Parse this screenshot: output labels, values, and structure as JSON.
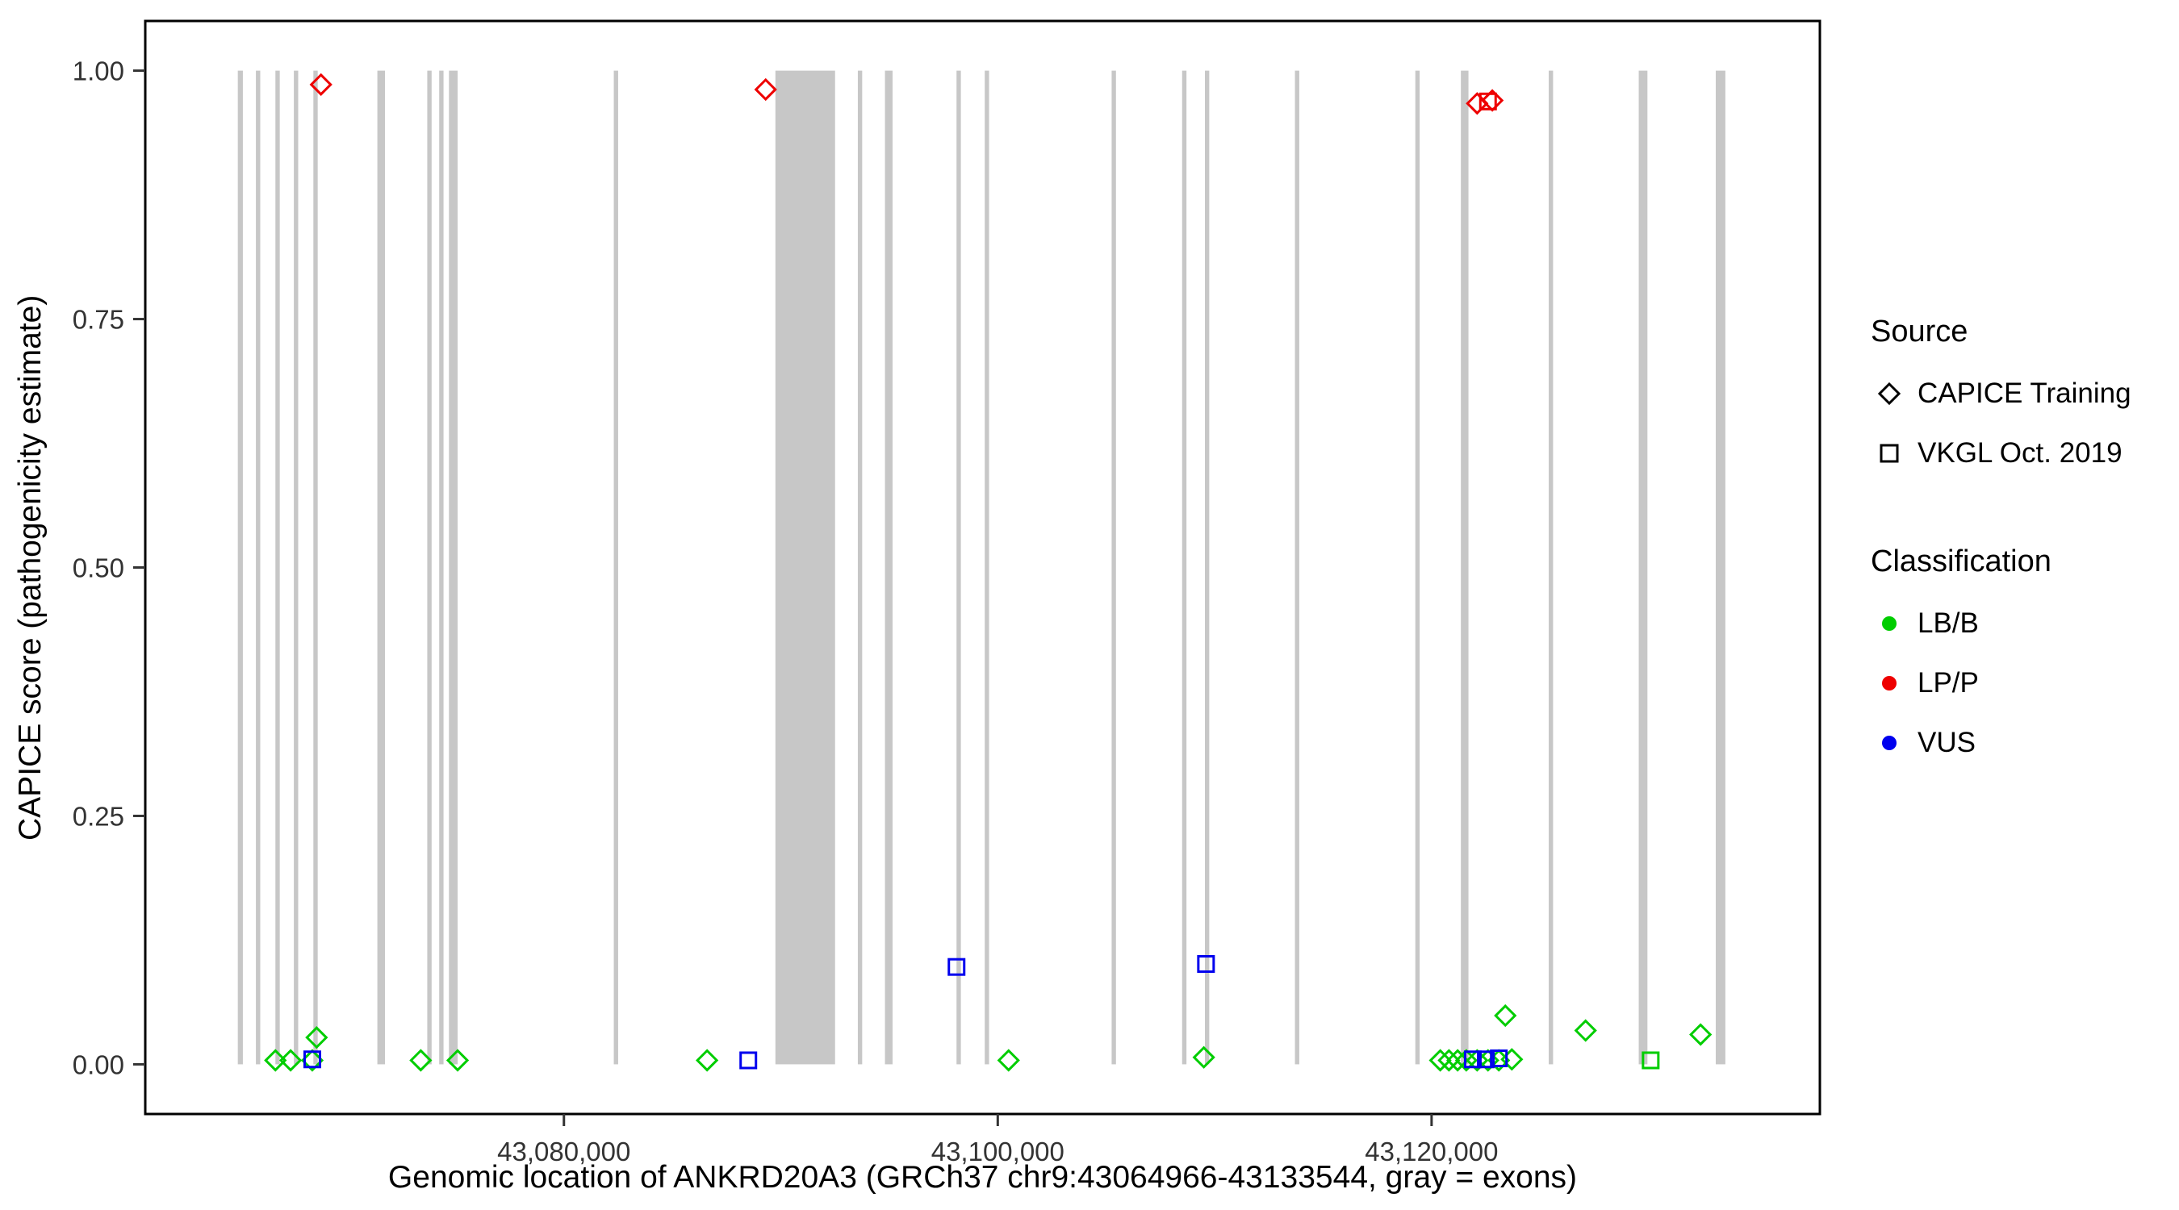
{
  "chart_data": {
    "type": "scatter",
    "title": "",
    "xlabel": "Genomic location of ANKRD20A3 (GRCh37 chr9:43064966-43133544, gray = exons)",
    "ylabel": "CAPICE score (pathogenicity estimate)",
    "xlim": [
      43060700,
      43137900
    ],
    "ylim": [
      -0.05,
      1.05
    ],
    "grid": false,
    "legend_position": "right",
    "x_ticks": [
      {
        "value": 43080000,
        "label": "43,080,000"
      },
      {
        "value": 43100000,
        "label": "43,100,000"
      },
      {
        "value": 43120000,
        "label": "43,120,000"
      }
    ],
    "y_ticks": [
      {
        "value": 0.0,
        "label": "0.00"
      },
      {
        "value": 0.25,
        "label": "0.25"
      },
      {
        "value": 0.5,
        "label": "0.50"
      },
      {
        "value": 0.75,
        "label": "0.75"
      },
      {
        "value": 1.0,
        "label": "1.00"
      }
    ],
    "exons": [
      [
        43064966,
        43065200
      ],
      [
        43065800,
        43066000
      ],
      [
        43066700,
        43066900
      ],
      [
        43067550,
        43067750
      ],
      [
        43068450,
        43068650
      ],
      [
        43071400,
        43071750
      ],
      [
        43073700,
        43073900
      ],
      [
        43074250,
        43074450
      ],
      [
        43074700,
        43075100
      ],
      [
        43082300,
        43082500
      ],
      [
        43089750,
        43092500
      ],
      [
        43093550,
        43093750
      ],
      [
        43094800,
        43095150
      ],
      [
        43098100,
        43098300
      ],
      [
        43099400,
        43099600
      ],
      [
        43105250,
        43105450
      ],
      [
        43108500,
        43108700
      ],
      [
        43109550,
        43109750
      ],
      [
        43113700,
        43113900
      ],
      [
        43119250,
        43119450
      ],
      [
        43121350,
        43121700
      ],
      [
        43125400,
        43125600
      ],
      [
        43129550,
        43129950
      ],
      [
        43133100,
        43133544
      ]
    ],
    "series": [
      {
        "name": "CAPICE Training - LB/B",
        "source": "CAPICE Training",
        "classification": "LB/B",
        "shape": "diamond",
        "color": "#00CD00",
        "points": [
          [
            43066700,
            0.004
          ],
          [
            43067400,
            0.004
          ],
          [
            43068400,
            0.004
          ],
          [
            43068600,
            0.027
          ],
          [
            43073400,
            0.004
          ],
          [
            43075100,
            0.004
          ],
          [
            43086600,
            0.004
          ],
          [
            43100500,
            0.004
          ],
          [
            43109500,
            0.007
          ],
          [
            43120400,
            0.004
          ],
          [
            43120800,
            0.004
          ],
          [
            43121200,
            0.004
          ],
          [
            43121600,
            0.004
          ],
          [
            43122100,
            0.004
          ],
          [
            43122600,
            0.004
          ],
          [
            43123100,
            0.004
          ],
          [
            43123700,
            0.005
          ],
          [
            43123400,
            0.049
          ],
          [
            43127100,
            0.034
          ],
          [
            43132400,
            0.03
          ]
        ]
      },
      {
        "name": "VKGL Oct. 2019 - LB/B",
        "source": "VKGL Oct. 2019",
        "classification": "LB/B",
        "shape": "square",
        "color": "#00CD00",
        "points": [
          [
            43130100,
            0.004
          ]
        ]
      },
      {
        "name": "VKGL Oct. 2019 - VUS",
        "source": "VKGL Oct. 2019",
        "classification": "VUS",
        "shape": "square",
        "color": "#0000EE",
        "points": [
          [
            43068400,
            0.005
          ],
          [
            43088500,
            0.004
          ],
          [
            43098100,
            0.098
          ],
          [
            43109600,
            0.101
          ],
          [
            43121900,
            0.005
          ],
          [
            43122500,
            0.005
          ],
          [
            43123100,
            0.006
          ]
        ]
      },
      {
        "name": "VKGL Oct. 2019 - LP/P",
        "source": "VKGL Oct. 2019",
        "classification": "LP/P",
        "shape": "square",
        "color": "#EE0000",
        "points": [
          [
            43122600,
            0.969
          ]
        ]
      },
      {
        "name": "CAPICE Training - LP/P",
        "source": "CAPICE Training",
        "classification": "LP/P",
        "shape": "diamond",
        "color": "#EE0000",
        "points": [
          [
            43068800,
            0.986
          ],
          [
            43089300,
            0.981
          ],
          [
            43122100,
            0.967
          ],
          [
            43122800,
            0.97
          ]
        ]
      }
    ],
    "legend": {
      "source_title": "Source",
      "source_items": [
        {
          "label": "CAPICE Training",
          "shape": "diamond"
        },
        {
          "label": "VKGL Oct. 2019",
          "shape": "square"
        }
      ],
      "classification_title": "Classification",
      "classification_items": [
        {
          "label": "LB/B",
          "color": "#00CD00"
        },
        {
          "label": "LP/P",
          "color": "#EE0000"
        },
        {
          "label": "VUS",
          "color": "#0000EE"
        }
      ]
    },
    "colors": {
      "exon": "#C7C7C7",
      "panel_border": "#000000",
      "axis_text": "#333333"
    }
  }
}
